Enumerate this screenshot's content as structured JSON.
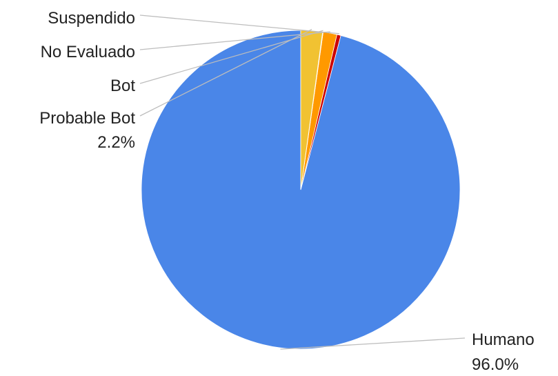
{
  "chart_data": {
    "type": "pie",
    "title": "",
    "start_angle_deg": 0,
    "direction": "counterclockwise",
    "slices": [
      {
        "label": "Humano",
        "value": 96.0,
        "percent_label": "96.0%",
        "color": "#4a86e8"
      },
      {
        "label": "Suspendido",
        "value": 0.4,
        "percent_label": "",
        "color": "#cc0000"
      },
      {
        "label": "No Evaluado",
        "value": 1.4,
        "percent_label": "",
        "color": "#ff9900"
      },
      {
        "label": "Bot",
        "value": 0.05,
        "percent_label": "",
        "color": "#ffd966"
      },
      {
        "label": "Probable Bot",
        "value": 2.2,
        "percent_label": "2.2%",
        "color": "#f1c232"
      }
    ],
    "legend": "none",
    "data_labels": "outside-with-leader-lines"
  }
}
